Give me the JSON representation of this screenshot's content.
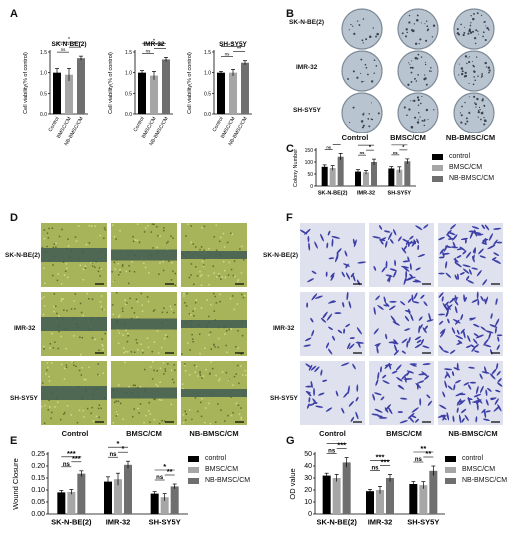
{
  "panels": {
    "A": "A",
    "B": "B",
    "C": "C",
    "D": "D",
    "E": "E",
    "F": "F",
    "G": "G"
  },
  "colors": {
    "control": "#000000",
    "bmsc": "#a6a6a6",
    "nb": "#6f6f6f",
    "dish": "#b8c4d0",
    "wound": "#a8b45a",
    "crystal": "#3c3fa6"
  },
  "groups": [
    "Control",
    "BMSC/CM",
    "NB-BMSC/CM"
  ],
  "cell_lines": [
    "SK-N-BE(2)",
    "IMR-32",
    "SH-SY5Y"
  ],
  "legend": [
    "control",
    "BMSC/CM",
    "NB-BMSC/CM"
  ],
  "panelA": {
    "ylabel": "Cell viability(% of control)",
    "xticks": [
      "Control",
      "BMSC/CM",
      "NB-BMSC/CM"
    ]
  },
  "panelB": {
    "col_labels": [
      "Control",
      "BMSC/CM",
      "NB-BMSC/CM"
    ]
  },
  "panelD": {
    "col_labels": [
      "Control",
      "BMSC/CM",
      "NB-BMSC/CM"
    ]
  },
  "panelF": {
    "col_labels": [
      "Control",
      "BMSC/CM",
      "NB-BMSC/CM"
    ]
  },
  "chart_data": [
    {
      "panel": "A1",
      "type": "bar",
      "title": "SK-N-BE(2)",
      "ylabel": "Cell viability(% of control)",
      "categories": [
        "Control",
        "BMSC/CM",
        "NB-BMSC/CM"
      ],
      "values": [
        1.0,
        0.95,
        1.35
      ],
      "errors": [
        0.1,
        0.15,
        0.05
      ],
      "ylim": [
        0,
        1.5
      ],
      "yticks": [
        0.0,
        0.5,
        1.0,
        1.5
      ],
      "sig": [
        "ns",
        "*",
        "*"
      ]
    },
    {
      "panel": "A2",
      "type": "bar",
      "title": "IMR-32",
      "ylabel": "Cell viability(% of control)",
      "categories": [
        "Control",
        "BMSC/CM",
        "NB-BMSC/CM"
      ],
      "values": [
        1.0,
        0.93,
        1.32
      ],
      "errors": [
        0.05,
        0.1,
        0.05
      ],
      "ylim": [
        0,
        1.5
      ],
      "yticks": [
        0.0,
        0.5,
        1.0,
        1.5
      ],
      "sig": [
        "ns",
        "*",
        "**"
      ]
    },
    {
      "panel": "A3",
      "type": "bar",
      "title": "SH-SY5Y",
      "ylabel": "Cell viability(% of control)",
      "categories": [
        "Control",
        "BMSC/CM",
        "NB-BMSC/CM"
      ],
      "values": [
        1.0,
        1.0,
        1.24
      ],
      "errors": [
        0.03,
        0.08,
        0.05
      ],
      "ylim": [
        0,
        1.5
      ],
      "yticks": [
        0.0,
        0.5,
        1.0,
        1.5
      ],
      "sig": [
        "ns",
        "*",
        "**"
      ]
    },
    {
      "panel": "C",
      "type": "bar",
      "ylabel": "Colony Number",
      "categories": [
        "SK-N-BE(2)",
        "IMR-32",
        "SH-SY5Y"
      ],
      "series": [
        {
          "name": "control",
          "values": [
            80,
            60,
            73
          ]
        },
        {
          "name": "BMSC/CM",
          "values": [
            75,
            57,
            68
          ]
        },
        {
          "name": "NB-BMSC/CM",
          "values": [
            122,
            100,
            103
          ]
        }
      ],
      "errors": [
        [
          8,
          8,
          8
        ],
        [
          10,
          8,
          12
        ],
        [
          14,
          12,
          10
        ]
      ],
      "ylim": [
        0,
        150
      ],
      "yticks": [
        0,
        50,
        100,
        150
      ],
      "sig": [
        [
          "ns",
          "*",
          "*"
        ],
        [
          "ns",
          "*",
          "*"
        ],
        [
          "ns",
          "*",
          "*"
        ]
      ]
    },
    {
      "panel": "E",
      "type": "bar",
      "ylabel": "Wound Closure",
      "categories": [
        "SK-N-BE(2)",
        "IMR-32",
        "SH-SY5Y"
      ],
      "series": [
        {
          "name": "control",
          "values": [
            0.09,
            0.135,
            0.085
          ]
        },
        {
          "name": "BMSC/CM",
          "values": [
            0.092,
            0.145,
            0.07
          ]
        },
        {
          "name": "NB-BMSC/CM",
          "values": [
            0.168,
            0.205,
            0.115
          ]
        }
      ],
      "errors": [
        [
          0.008,
          0.02,
          0.008
        ],
        [
          0.01,
          0.025,
          0.015
        ],
        [
          0.012,
          0.015,
          0.01
        ]
      ],
      "ylim": [
        0,
        0.25
      ],
      "yticks": [
        0.0,
        0.05,
        0.1,
        0.15,
        0.2,
        0.25
      ],
      "sig": [
        [
          "ns",
          "***",
          "***"
        ],
        [
          "ns",
          "*",
          "*"
        ],
        [
          "ns",
          "*",
          "**"
        ]
      ]
    },
    {
      "panel": "G",
      "type": "bar",
      "ylabel": "OD value",
      "categories": [
        "SK-N-BE(2)",
        "IMR-32",
        "SH-SY5Y"
      ],
      "series": [
        {
          "name": "control",
          "values": [
            32,
            19,
            25
          ]
        },
        {
          "name": "BMSC/CM",
          "values": [
            30,
            20,
            24
          ]
        },
        {
          "name": "NB-BMSC/CM",
          "values": [
            43,
            30,
            36
          ]
        }
      ],
      "errors": [
        [
          2,
          1.5,
          2
        ],
        [
          3,
          3,
          3
        ],
        [
          4,
          3,
          4
        ]
      ],
      "ylim": [
        0,
        50
      ],
      "yticks": [
        0,
        10,
        20,
        30,
        40,
        50
      ],
      "sig": [
        [
          "ns",
          "***",
          "***"
        ],
        [
          "ns",
          "***",
          "***"
        ],
        [
          "ns",
          "**",
          "**"
        ]
      ]
    }
  ]
}
